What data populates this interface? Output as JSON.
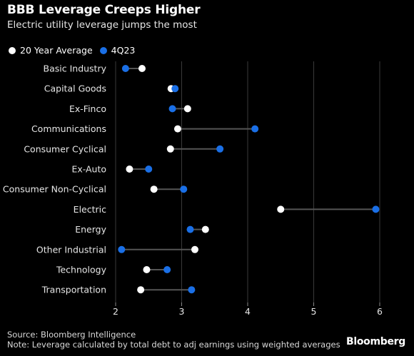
{
  "header": {
    "title": "BBB Leverage Creeps Higher",
    "subtitle": "Electric utility leverage jumps the most"
  },
  "legend": {
    "avg_label": "20 Year Average",
    "recent_label": "4Q23"
  },
  "footer": {
    "source": "Source: Bloomberg Intelligence",
    "note": "Note: Leverage calculated by total debt to adj earnings using weighted averages",
    "brand": "Bloomberg"
  },
  "colors": {
    "background": "#000000",
    "avg": "#ffffff",
    "recent": "#1a6fe6",
    "connector": "#555555",
    "grid": "#3a3a3a"
  },
  "chart_data": {
    "type": "dumbbell",
    "title": "BBB Leverage Creeps Higher",
    "subtitle": "Electric utility leverage jumps the most",
    "xlim": [
      2,
      6
    ],
    "x_ticks": [
      2,
      3,
      4,
      5,
      6
    ],
    "grid": "vertical",
    "legend_position": "top-left",
    "categories": [
      "Basic Industry",
      "Capital Goods",
      "Ex-Finco",
      "Communications",
      "Consumer Cyclical",
      "Ex-Auto",
      "Consumer Non-Cyclical",
      "Electric",
      "Energy",
      "Other Industrial",
      "Technology",
      "Transportation"
    ],
    "series": [
      {
        "name": "20 Year Average",
        "values": [
          2.4,
          2.84,
          3.09,
          2.94,
          2.83,
          2.21,
          2.58,
          4.5,
          3.36,
          3.2,
          2.47,
          2.38
        ]
      },
      {
        "name": "4Q23",
        "values": [
          2.15,
          2.9,
          2.86,
          4.11,
          3.58,
          2.5,
          3.03,
          5.94,
          3.13,
          2.09,
          2.78,
          3.15
        ]
      }
    ]
  }
}
